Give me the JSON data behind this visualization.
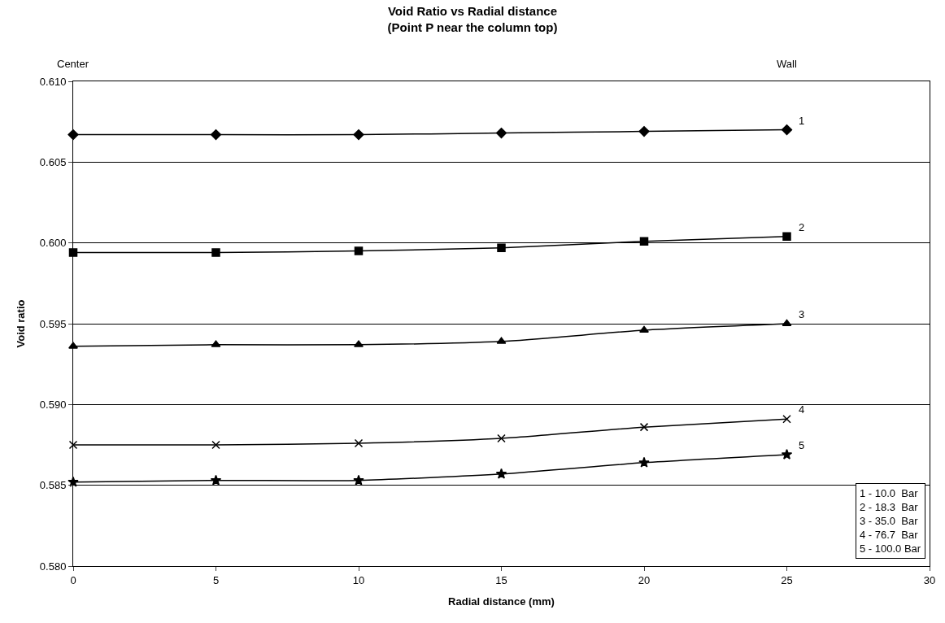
{
  "chart_data": {
    "type": "line",
    "title": "Void Ratio vs Radial distance\n(Point P near the column top)",
    "xlabel": "Radial distance (mm)",
    "ylabel": "Void ratio",
    "x": [
      0,
      5,
      10,
      15,
      20,
      25
    ],
    "series": [
      {
        "name": "1",
        "color": "#000000",
        "marker": "diamond",
        "values": [
          0.6067,
          0.6067,
          0.6067,
          0.6068,
          0.6069,
          0.607
        ]
      },
      {
        "name": "2",
        "color": "#000000",
        "marker": "square",
        "values": [
          0.5994,
          0.5994,
          0.5995,
          0.5997,
          0.6001,
          0.6004
        ]
      },
      {
        "name": "3",
        "color": "#000000",
        "marker": "triangle",
        "values": [
          0.5936,
          0.5937,
          0.5937,
          0.5939,
          0.5946,
          0.595
        ]
      },
      {
        "name": "4",
        "color": "#000000",
        "marker": "cross",
        "values": [
          0.5875,
          0.5875,
          0.5876,
          0.5879,
          0.5886,
          0.5891
        ]
      },
      {
        "name": "5",
        "color": "#000000",
        "marker": "star",
        "values": [
          0.5852,
          0.5853,
          0.5853,
          0.5857,
          0.5864,
          0.5869
        ]
      }
    ],
    "xlim": [
      0,
      30
    ],
    "xticks": [
      0,
      5,
      10,
      15,
      20,
      25,
      30
    ],
    "ylim": [
      0.58,
      0.61
    ],
    "yticks": [
      {
        "value": 0.58,
        "label": "0.580"
      },
      {
        "value": 0.585,
        "label": "0.585"
      },
      {
        "value": 0.59,
        "label": "0.590"
      },
      {
        "value": 0.595,
        "label": "0.595"
      },
      {
        "value": 0.6,
        "label": "0.600"
      },
      {
        "value": 0.605,
        "label": "0.605"
      },
      {
        "value": 0.61,
        "label": "0.610"
      }
    ],
    "grid": "y",
    "legend": false,
    "line_style": "solid",
    "annotations": [
      "Center",
      "Wall",
      "1 - 10.0  Bar\n2 - 18.3  Bar\n3 - 35.0  Bar\n4 - 76.7  Bar\n5 - 100.0 Bar"
    ]
  }
}
